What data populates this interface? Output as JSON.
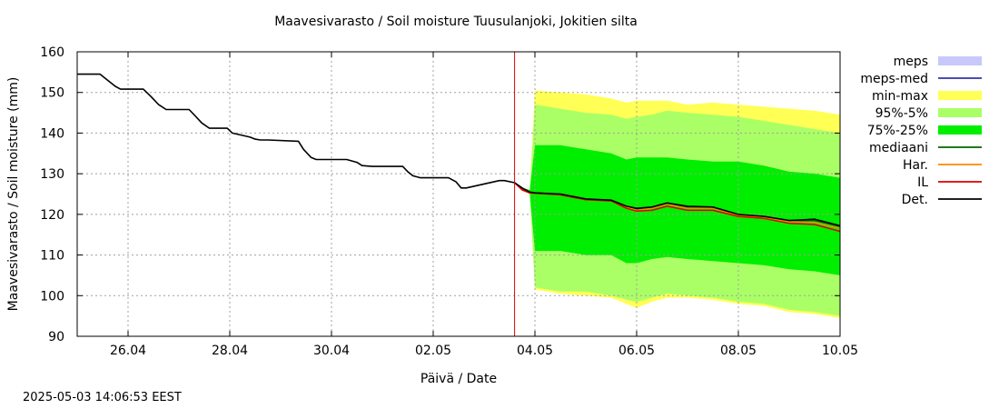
{
  "title": "Maavesivarasto / Soil moisture   Tuusulanjoki, Jokitien silta",
  "timestamp": "2025-05-03 14:06:53 EEST",
  "chart_data": {
    "type": "area",
    "title": "Maavesivarasto / Soil moisture   Tuusulanjoki, Jokitien silta",
    "xlabel": "Päivä / Date",
    "ylabel": "Maavesivarasto / Soil moisture (mm)",
    "xlim": [
      0,
      15
    ],
    "ylim": [
      90,
      160
    ],
    "yticks": [
      90,
      100,
      110,
      120,
      130,
      140,
      150,
      160
    ],
    "xticks": [
      {
        "x": 1,
        "label": "26.04"
      },
      {
        "x": 3,
        "label": "28.04"
      },
      {
        "x": 5,
        "label": "30.04"
      },
      {
        "x": 7,
        "label": "02.05"
      },
      {
        "x": 9,
        "label": "04.05"
      },
      {
        "x": 11,
        "label": "06.05"
      },
      {
        "x": 13,
        "label": "08.05"
      },
      {
        "x": 15,
        "label": "10.05"
      }
    ],
    "grid": true,
    "forecast_start": 8.6,
    "legend": [
      {
        "label": "meps",
        "color": "#c8c8fa",
        "kind": "box"
      },
      {
        "label": "meps-med",
        "color": "#3333aa",
        "kind": "line"
      },
      {
        "label": "min-max",
        "color": "#ffff55",
        "kind": "box"
      },
      {
        "label": "95%-5%",
        "color": "#aaff66",
        "kind": "box"
      },
      {
        "label": "75%-25%",
        "color": "#00ee00",
        "kind": "box"
      },
      {
        "label": "mediaani",
        "color": "#006600",
        "kind": "line"
      },
      {
        "label": "Har.",
        "color": "#ff8800",
        "kind": "line"
      },
      {
        "label": "IL",
        "color": "#dd0000",
        "kind": "line"
      },
      {
        "label": "Det.",
        "color": "#000000",
        "kind": "line"
      }
    ],
    "series": {
      "det_history": {
        "x": [
          0,
          0.45,
          0.55,
          0.75,
          0.85,
          1.3,
          1.45,
          1.6,
          1.75,
          2.2,
          2.3,
          2.45,
          2.6,
          2.95,
          3.05,
          3.4,
          3.5,
          3.6,
          3.75,
          4.35,
          4.45,
          4.6,
          4.7,
          5.3,
          5.5,
          5.6,
          5.8,
          6.4,
          6.5,
          6.6,
          6.75,
          7.3,
          7.45,
          7.55,
          7.65,
          8.3,
          8.4,
          8.6
        ],
        "y": [
          154.5,
          154.5,
          153.5,
          151.5,
          150.8,
          150.8,
          149,
          147,
          145.8,
          145.8,
          144.5,
          142.5,
          141.2,
          141.2,
          140,
          139,
          138.5,
          138.3,
          138.3,
          138,
          136,
          134,
          133.5,
          133.5,
          132.8,
          132,
          131.8,
          131.8,
          130.5,
          129.5,
          129,
          129,
          128,
          126.5,
          126.5,
          128.3,
          128.3,
          127.8
        ]
      },
      "x_forecast": [
        8.6,
        8.75,
        8.9,
        9.0,
        9.5,
        10.0,
        10.5,
        10.8,
        11.0,
        11.3,
        11.6,
        12.0,
        12.5,
        13.0,
        13.5,
        14.0,
        14.5,
        15.0
      ],
      "det": [
        127.8,
        126.5,
        125.5,
        125.3,
        125.0,
        123.8,
        123.5,
        122.0,
        121.5,
        121.8,
        122.8,
        122.0,
        121.8,
        120.0,
        119.5,
        118.5,
        118.8,
        117.2
      ],
      "il": [
        127.8,
        126.0,
        125.3,
        125.2,
        124.8,
        123.6,
        123.3,
        121.5,
        120.8,
        121.0,
        122.0,
        121.0,
        121.0,
        119.5,
        119.0,
        117.8,
        117.5,
        115.8
      ],
      "har": [
        127.8,
        126.0,
        125.2,
        125.2,
        124.9,
        123.8,
        123.5,
        121.8,
        121.0,
        121.5,
        122.5,
        121.5,
        121.5,
        119.8,
        119.2,
        118.2,
        118.0,
        116.5
      ],
      "mediaani": [
        127.8,
        126.3,
        125.4,
        125.3,
        125.0,
        123.8,
        123.5,
        122.0,
        121.3,
        121.6,
        122.6,
        121.7,
        121.6,
        119.9,
        119.4,
        118.4,
        118.5,
        117.0
      ],
      "min": [
        127.8,
        126.0,
        125.0,
        101.5,
        100.5,
        100.0,
        99.5,
        98.0,
        97.0,
        98.5,
        99.5,
        99.5,
        99.0,
        98.0,
        97.5,
        96.0,
        95.5,
        94.5
      ],
      "max": [
        127.8,
        126.5,
        126.0,
        150.5,
        150.0,
        149.5,
        148.5,
        147.5,
        148.0,
        148.0,
        148.0,
        147.0,
        147.5,
        147.0,
        146.5,
        146.0,
        145.5,
        144.5
      ],
      "p5": [
        127.8,
        126.0,
        125.0,
        102.0,
        101.0,
        101.0,
        100.0,
        99.0,
        98.5,
        99.5,
        100.5,
        100.0,
        99.5,
        98.5,
        98.0,
        96.5,
        96.0,
        95.0
      ],
      "p95": [
        127.8,
        126.5,
        126.0,
        147.0,
        146.0,
        145.0,
        144.5,
        143.5,
        144.0,
        144.5,
        145.5,
        145.0,
        144.5,
        144.0,
        143.0,
        142.0,
        141.0,
        140.0
      ],
      "p25": [
        127.8,
        126.0,
        125.0,
        111.0,
        111.0,
        110.0,
        110.0,
        108.0,
        108.0,
        109.0,
        109.5,
        109.0,
        108.5,
        108.0,
        107.5,
        106.5,
        106.0,
        105.0
      ],
      "p75": [
        127.8,
        126.5,
        126.0,
        137.0,
        137.0,
        136.0,
        135.0,
        133.5,
        134.0,
        134.0,
        134.0,
        133.5,
        133.0,
        133.0,
        132.0,
        130.5,
        130.0,
        129.0
      ]
    }
  }
}
